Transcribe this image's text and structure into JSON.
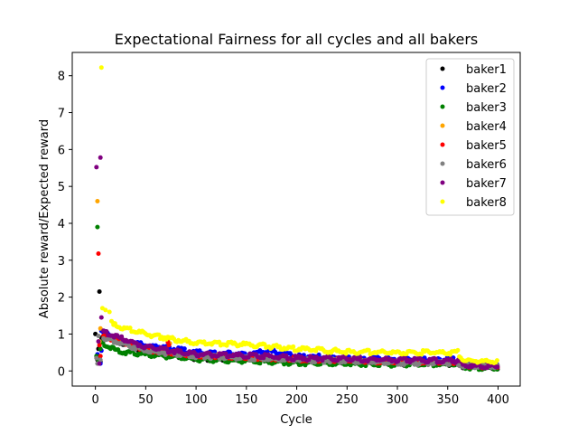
{
  "chart_data": {
    "type": "scatter",
    "title": "Expectational Fairness for all cycles and all bakers",
    "xlabel": "Cycle",
    "ylabel": "Absolute reward/Expected reward",
    "xlim": [
      -23,
      422
    ],
    "ylim": [
      -0.41,
      8.63
    ],
    "xticks": [
      0,
      50,
      100,
      150,
      200,
      250,
      300,
      350,
      400
    ],
    "yticks": [
      0,
      1,
      2,
      3,
      4,
      5,
      6,
      7,
      8
    ],
    "legend_position": "top-right",
    "series": [
      {
        "name": "baker1",
        "color": "#000000",
        "points": [
          [
            0,
            1.0
          ],
          [
            2,
            0.3
          ],
          [
            3,
            0.6
          ],
          [
            4,
            2.15
          ],
          [
            5,
            0.25
          ],
          [
            6,
            0.9
          ]
        ],
        "trend": [
          [
            8,
            1.0
          ],
          [
            50,
            0.5
          ],
          [
            100,
            0.35
          ],
          [
            200,
            0.28
          ],
          [
            300,
            0.2
          ],
          [
            360,
            0.2
          ],
          [
            366,
            0.12
          ],
          [
            400,
            0.1
          ]
        ]
      },
      {
        "name": "baker2",
        "color": "#0000ff",
        "points": [
          [
            2,
            0.45
          ],
          [
            3,
            0.35
          ],
          [
            5,
            0.2
          ],
          [
            6,
            0.55
          ]
        ],
        "trend": [
          [
            6,
            1.1
          ],
          [
            20,
            0.85
          ],
          [
            50,
            0.7
          ],
          [
            100,
            0.5
          ],
          [
            150,
            0.45
          ],
          [
            170,
            0.55
          ],
          [
            200,
            0.4
          ],
          [
            300,
            0.3
          ],
          [
            360,
            0.3
          ],
          [
            366,
            0.18
          ],
          [
            400,
            0.15
          ]
        ]
      },
      {
        "name": "baker3",
        "color": "#008000",
        "points": [
          [
            1,
            0.4
          ],
          [
            2,
            3.9
          ],
          [
            3,
            0.3
          ],
          [
            5,
            0.6
          ]
        ],
        "trend": [
          [
            6,
            0.75
          ],
          [
            20,
            0.55
          ],
          [
            50,
            0.45
          ],
          [
            100,
            0.32
          ],
          [
            200,
            0.22
          ],
          [
            300,
            0.18
          ],
          [
            360,
            0.18
          ],
          [
            366,
            0.1
          ],
          [
            400,
            0.08
          ]
        ]
      },
      {
        "name": "baker4",
        "color": "#ffa500",
        "points": [
          [
            2,
            4.6
          ],
          [
            4,
            0.8
          ],
          [
            5,
            1.15
          ],
          [
            73,
            0.88
          ],
          [
            74,
            0.75
          ]
        ],
        "trend": []
      },
      {
        "name": "baker5",
        "color": "#ff0000",
        "points": [
          [
            3,
            3.18
          ],
          [
            4,
            0.7
          ],
          [
            5,
            0.4
          ],
          [
            72,
            0.78
          ],
          [
            73,
            0.7
          ]
        ],
        "trend": [
          [
            8,
            0.95
          ],
          [
            50,
            0.58
          ],
          [
            100,
            0.42
          ],
          [
            200,
            0.32
          ],
          [
            300,
            0.25
          ],
          [
            360,
            0.25
          ],
          [
            366,
            0.15
          ],
          [
            400,
            0.12
          ]
        ]
      },
      {
        "name": "baker6",
        "color": "#808080",
        "points": [
          [
            1,
            0.35
          ],
          [
            2,
            0.2
          ],
          [
            3,
            0.95
          ],
          [
            5,
            0.3
          ]
        ],
        "trend": [
          [
            8,
            0.9
          ],
          [
            50,
            0.55
          ],
          [
            100,
            0.4
          ],
          [
            200,
            0.3
          ],
          [
            300,
            0.22
          ],
          [
            360,
            0.22
          ],
          [
            366,
            0.14
          ],
          [
            400,
            0.12
          ]
        ]
      },
      {
        "name": "baker7",
        "color": "#800080",
        "points": [
          [
            1,
            5.52
          ],
          [
            5,
            5.78
          ],
          [
            6,
            1.45
          ],
          [
            3,
            0.8
          ],
          [
            4,
            0.2
          ]
        ],
        "trend": [
          [
            8,
            1.05
          ],
          [
            50,
            0.65
          ],
          [
            100,
            0.45
          ],
          [
            150,
            0.42
          ],
          [
            200,
            0.35
          ],
          [
            300,
            0.3
          ],
          [
            360,
            0.28
          ],
          [
            366,
            0.15
          ],
          [
            400,
            0.12
          ]
        ]
      },
      {
        "name": "baker8",
        "color": "#ffff00",
        "points": [
          [
            6,
            8.22
          ],
          [
            7,
            1.7
          ],
          [
            10,
            1.65
          ],
          [
            14,
            1.6
          ],
          [
            16,
            1.35
          ],
          [
            18,
            1.25
          ]
        ],
        "trend": [
          [
            18,
            1.25
          ],
          [
            50,
            1.0
          ],
          [
            100,
            0.75
          ],
          [
            150,
            0.72
          ],
          [
            200,
            0.6
          ],
          [
            250,
            0.52
          ],
          [
            300,
            0.5
          ],
          [
            360,
            0.5
          ],
          [
            366,
            0.28
          ],
          [
            400,
            0.25
          ]
        ]
      }
    ]
  }
}
